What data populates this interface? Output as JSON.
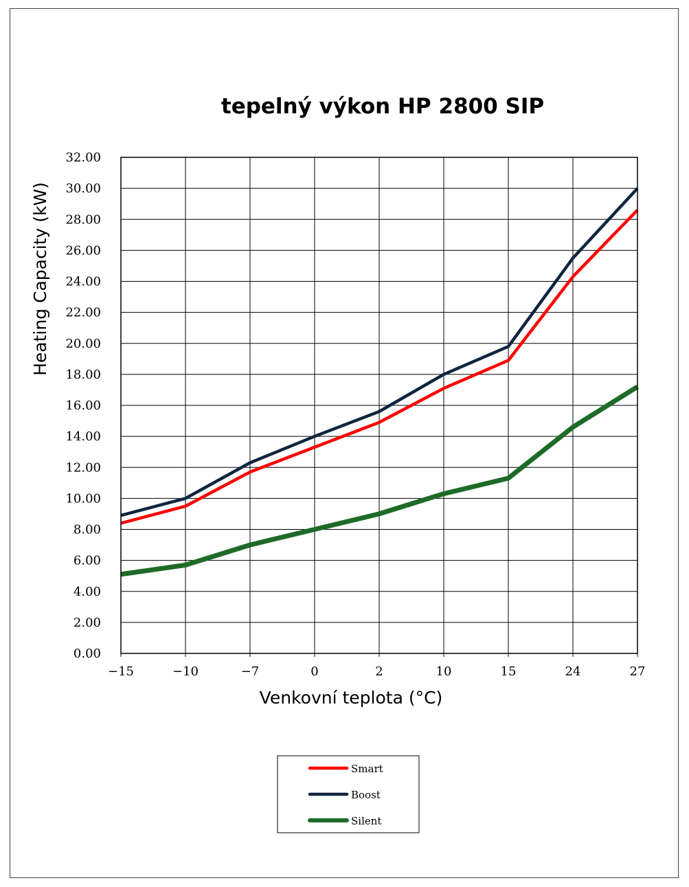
{
  "chart_data": {
    "type": "line",
    "title": "tepelný výkon HP 2800 SIP",
    "xlabel": "Venkovní teplota (°C)",
    "ylabel": "Heating Capacity (kW)",
    "categories": [
      "−15",
      "−10",
      "−7",
      "0",
      "2",
      "10",
      "15",
      "24",
      "27"
    ],
    "ylim": [
      0,
      32
    ],
    "y_ticks": [
      "0.00",
      "2.00",
      "4.00",
      "6.00",
      "8.00",
      "10.00",
      "12.00",
      "14.00",
      "16.00",
      "18.00",
      "20.00",
      "22.00",
      "24.00",
      "26.00",
      "28.00",
      "30.00",
      "32.00"
    ],
    "grid": true,
    "legend_position": "bottom-center",
    "series": [
      {
        "name": "Smart",
        "color": "#ff0000",
        "values": [
          8.4,
          9.5,
          11.7,
          13.3,
          14.9,
          17.1,
          18.9,
          24.3,
          28.6
        ]
      },
      {
        "name": "Boost",
        "color": "#0f2540",
        "values": [
          8.9,
          10.0,
          12.3,
          14.0,
          15.6,
          18.0,
          19.8,
          25.5,
          30.0
        ]
      },
      {
        "name": "Silent",
        "color": "#1e6b28",
        "values": [
          5.1,
          5.7,
          7.0,
          8.0,
          9.0,
          10.3,
          11.3,
          14.6,
          17.2
        ]
      }
    ]
  }
}
